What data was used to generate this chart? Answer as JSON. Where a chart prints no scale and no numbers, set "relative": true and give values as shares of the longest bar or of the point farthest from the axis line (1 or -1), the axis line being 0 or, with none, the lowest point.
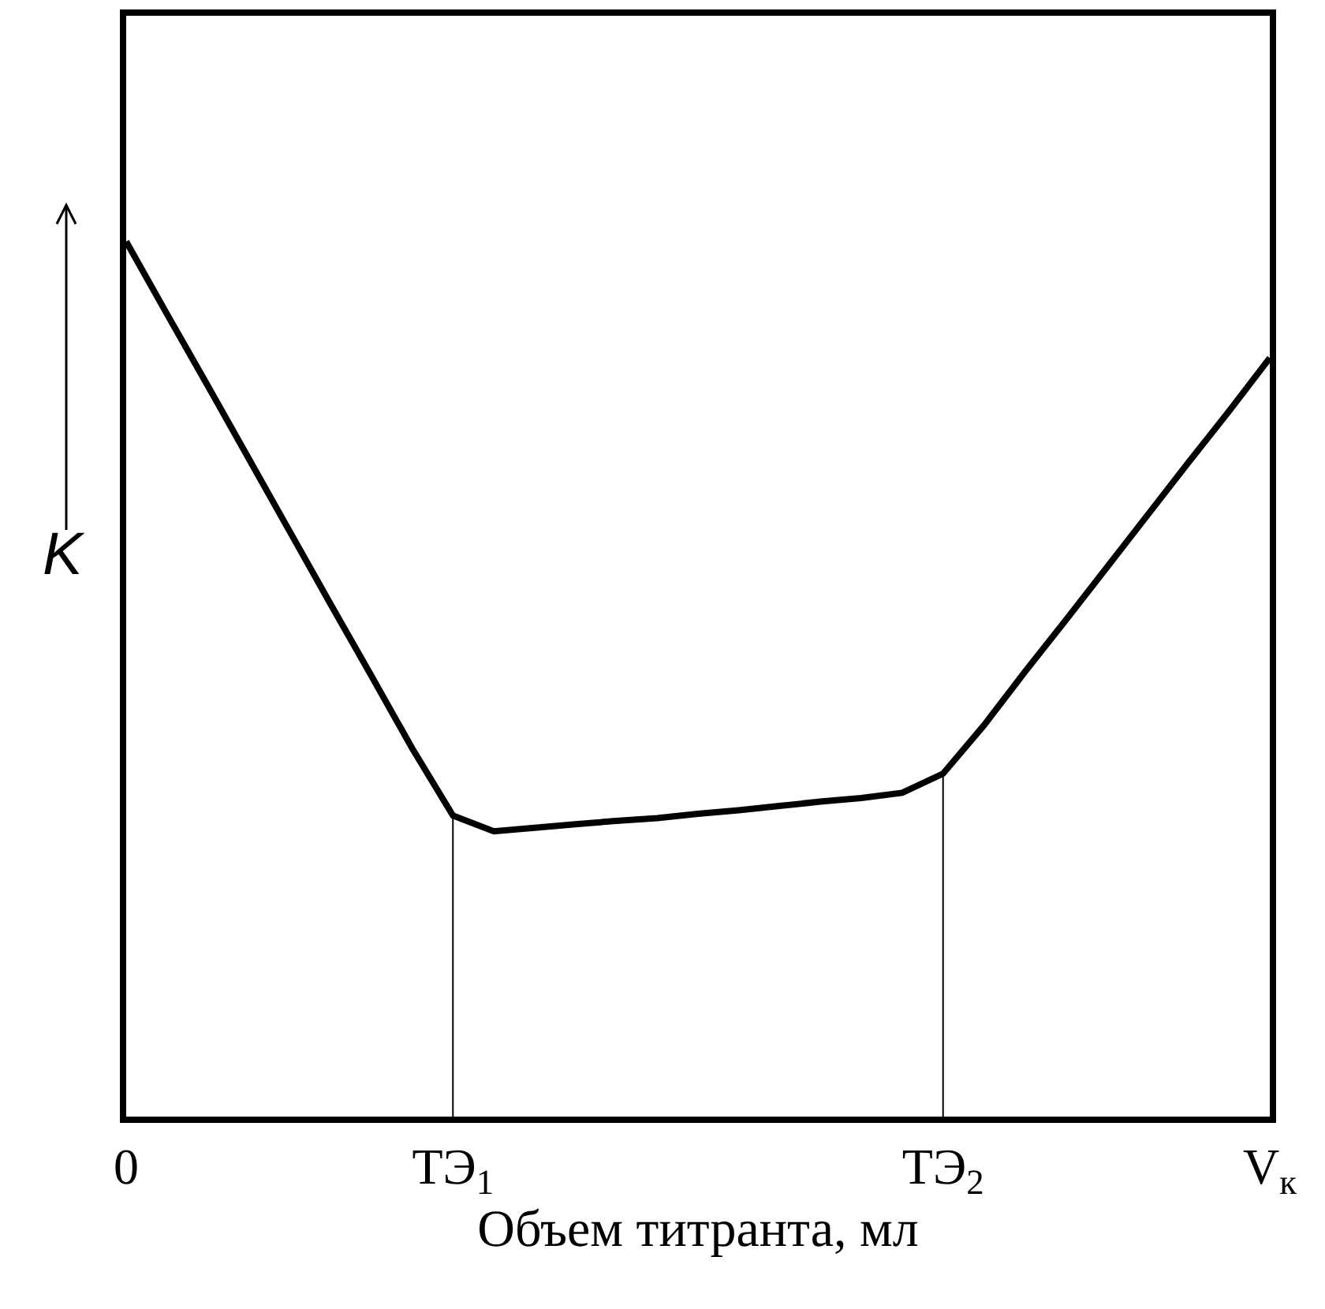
{
  "chart_data": {
    "type": "line",
    "relative": true,
    "xlabel": "Объем титранта, мл",
    "ylabel": "K",
    "categories": [
      "0",
      null,
      null,
      null,
      null,
      null,
      null,
      null,
      "ТЭ$_{1}$",
      null,
      null,
      null,
      null,
      null,
      null,
      null,
      null,
      null,
      null,
      null,
      "ТЭ$_{2}$",
      null,
      null,
      null,
      null,
      null,
      null,
      null,
      "V$_{к}$"
    ],
    "series": [
      {
        "color": "#000000",
        "values": [
          1,
          0.917,
          0.835,
          0.752,
          0.669,
          0.586,
          0.504,
          0.421,
          0.344,
          0.326,
          0.33,
          0.334,
          0.338,
          0.341,
          0.346,
          0.35,
          0.355,
          0.36,
          0.364,
          0.37,
          0.392,
          0.447,
          0.508,
          0.567,
          0.627,
          0.687,
          0.747,
          0.806,
          0.867
        ]
      }
    ],
    "ref_lines": [
      {
        "axis": "x",
        "value": "ТЭ$_{1}$"
      },
      {
        "axis": "x",
        "value": "ТЭ$_{2}$"
      }
    ],
    "tick_labels": "x",
    "grid": false,
    "legend": false,
    "marker": "none",
    "line_style": "solid"
  }
}
